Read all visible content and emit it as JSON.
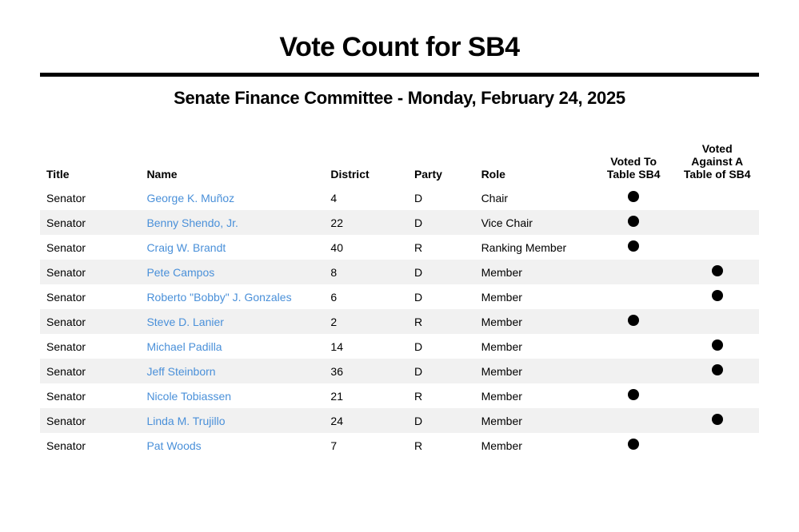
{
  "title": "Vote Count for SB4",
  "subtitle": "Senate Finance Committee - Monday, February 24, 2025",
  "columns": {
    "title": "Title",
    "name": "Name",
    "district": "District",
    "party": "Party",
    "role": "Role",
    "voted_to": "Voted To Table SB4",
    "voted_against": "Voted Against A Table of SB4"
  },
  "link_color": "#4a90d9",
  "row_alt_bg": "#f1f1f1",
  "dot_color": "#000000",
  "rows": [
    {
      "title": "Senator",
      "name": "George K. Muñoz",
      "district": "4",
      "party": "D",
      "role": "Chair",
      "voted_to": true,
      "voted_against": false
    },
    {
      "title": "Senator",
      "name": "Benny Shendo, Jr.",
      "district": "22",
      "party": "D",
      "role": "Vice Chair",
      "voted_to": true,
      "voted_against": false
    },
    {
      "title": "Senator",
      "name": "Craig W. Brandt",
      "district": "40",
      "party": "R",
      "role": "Ranking Member",
      "voted_to": true,
      "voted_against": false
    },
    {
      "title": "Senator",
      "name": "Pete Campos",
      "district": "8",
      "party": "D",
      "role": "Member",
      "voted_to": false,
      "voted_against": true
    },
    {
      "title": "Senator",
      "name": "Roberto \"Bobby\" J. Gonzales",
      "district": "6",
      "party": "D",
      "role": "Member",
      "voted_to": false,
      "voted_against": true
    },
    {
      "title": "Senator",
      "name": "Steve D. Lanier",
      "district": "2",
      "party": "R",
      "role": "Member",
      "voted_to": true,
      "voted_against": false
    },
    {
      "title": "Senator",
      "name": "Michael Padilla",
      "district": "14",
      "party": "D",
      "role": "Member",
      "voted_to": false,
      "voted_against": true
    },
    {
      "title": "Senator",
      "name": "Jeff Steinborn",
      "district": "36",
      "party": "D",
      "role": "Member",
      "voted_to": false,
      "voted_against": true
    },
    {
      "title": "Senator",
      "name": "Nicole Tobiassen",
      "district": "21",
      "party": "R",
      "role": "Member",
      "voted_to": true,
      "voted_against": false
    },
    {
      "title": "Senator",
      "name": "Linda M. Trujillo",
      "district": "24",
      "party": "D",
      "role": "Member",
      "voted_to": false,
      "voted_against": true
    },
    {
      "title": "Senator",
      "name": "Pat Woods",
      "district": "7",
      "party": "R",
      "role": "Member",
      "voted_to": true,
      "voted_against": false
    }
  ]
}
